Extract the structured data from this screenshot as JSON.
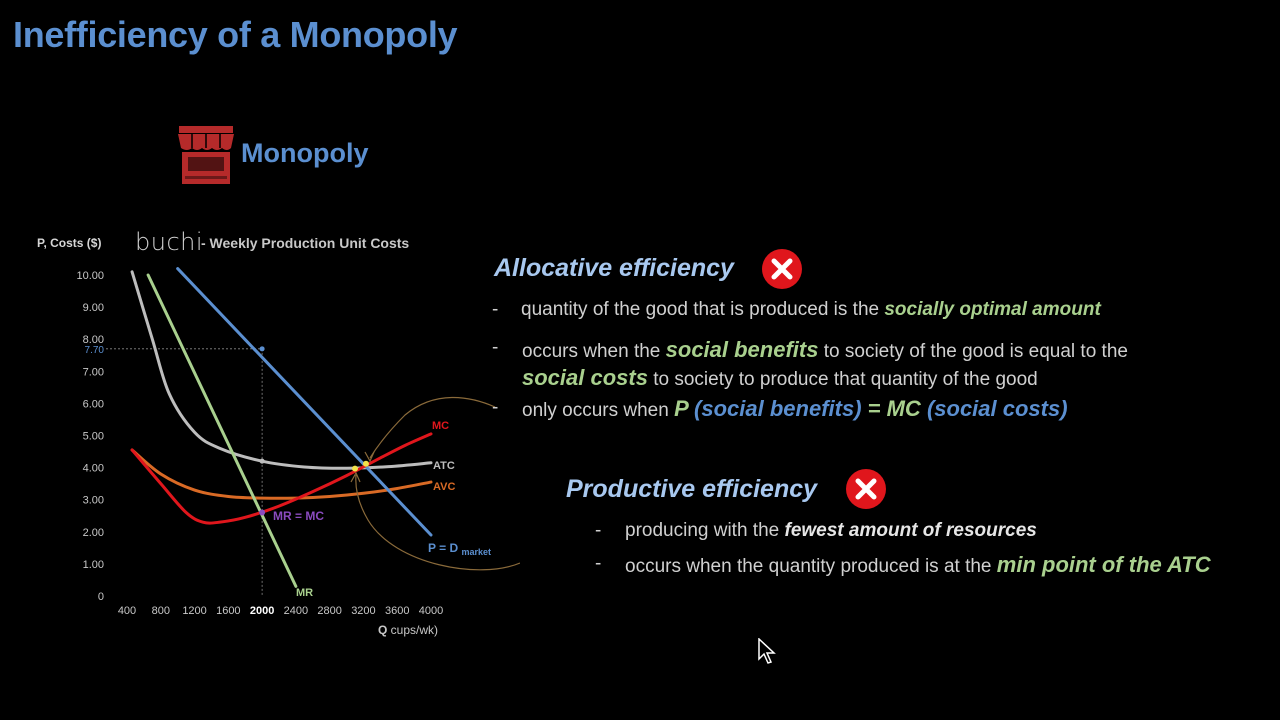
{
  "page": {
    "title": "Inefficiency of a Monopoly",
    "market_label": "Monopoly"
  },
  "colors": {
    "title_blue": "#5b8fd0",
    "demand_blue": "#5b8fd0",
    "mc_red": "#e0161c",
    "atc_gray": "#bdbdbd",
    "avc_orange": "#d96a25",
    "mr_green": "#a9d08e",
    "mr_eq_mc_purple": "#8a4bbf",
    "icon_red": "#b52a2a",
    "x_red": "#e0161c"
  },
  "chart_data": {
    "type": "line",
    "title": "- Weekly Production Unit Costs",
    "brand": "buchi",
    "ylabel": "P, Costs ($)",
    "xlabel_bold": "Q",
    "xlabel_rest": " cups/wk)",
    "xlim": [
      400,
      4000
    ],
    "ylim": [
      0,
      10
    ],
    "xticks": [
      "400",
      "800",
      "1200",
      "1600",
      "2000",
      "2400",
      "2800",
      "3200",
      "3600",
      "4000"
    ],
    "yticks": [
      "0",
      "1.00",
      "2.00",
      "3.00",
      "4.00",
      "5.00",
      "6.00",
      "7.00",
      "8.00",
      "9.00",
      "10.00"
    ],
    "highlight_x": "2000",
    "highlight_y": "7.70",
    "series": [
      {
        "name": "P = D",
        "subscript": "market",
        "color": "#5b8fd0",
        "x": [
          1000,
          4000
        ],
        "y": [
          10.2,
          1.9
        ]
      },
      {
        "name": "MR",
        "color": "#a9d08e",
        "x": [
          650,
          2400
        ],
        "y": [
          10.0,
          0.3
        ]
      },
      {
        "name": "ATC",
        "color": "#bdbdbd",
        "x": [
          460,
          700,
          900,
          1200,
          1500,
          2000,
          2500,
          3000,
          3500,
          4000
        ],
        "y": [
          10.1,
          8.0,
          6.3,
          5.1,
          4.6,
          4.2,
          4.02,
          3.98,
          4.03,
          4.15
        ]
      },
      {
        "name": "AVC",
        "color": "#d96a25",
        "x": [
          460,
          800,
          1200,
          1600,
          2000,
          2400,
          2800,
          3200,
          3600,
          4000
        ],
        "y": [
          4.55,
          3.8,
          3.3,
          3.1,
          3.05,
          3.05,
          3.1,
          3.2,
          3.35,
          3.55
        ]
      },
      {
        "name": "MC",
        "color": "#e0161c",
        "x": [
          460,
          800,
          1100,
          1300,
          1500,
          1800,
          2200,
          2600,
          3000,
          3400,
          3700,
          4000
        ],
        "y": [
          4.55,
          3.5,
          2.6,
          2.3,
          2.3,
          2.45,
          2.8,
          3.25,
          3.75,
          4.3,
          4.7,
          5.05
        ]
      }
    ],
    "annotations": [
      {
        "text": "MR = MC",
        "x": 2000,
        "y": 2.6,
        "color": "#8a4bbf"
      }
    ]
  },
  "allocative": {
    "heading": "Allocative efficiency",
    "b1_dash": "-",
    "b1_text": "quantity of the good that is produced is the ",
    "b1_em": "socially optimal amount",
    "b2_dash": "-",
    "b2_text1": "occurs when the ",
    "b2_em1": "social benefits",
    "b2_text2": " to society of the good is equal to the",
    "b2_em2": "social costs",
    "b2_text3": " to society to produce that quantity of the good",
    "b3_dash": "-",
    "b3_text": "only occurs when ",
    "b3_p": "P",
    "b3_sb": "(social benefits)",
    "b3_eq": " = MC ",
    "b3_sc": "(social costs)"
  },
  "productive": {
    "heading": "Productive efficiency",
    "b1_dash": "-",
    "b1_text": "producing with the ",
    "b1_em": "fewest amount of resources",
    "b2_dash": "-",
    "b2_text": "occurs when the quantity produced is at the ",
    "b2_em": "min point of the ATC"
  }
}
